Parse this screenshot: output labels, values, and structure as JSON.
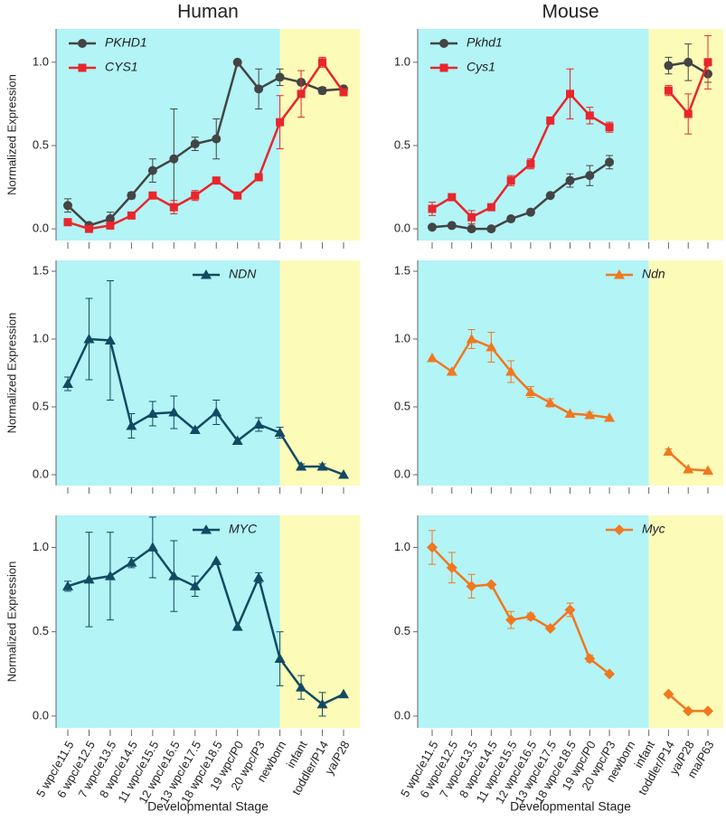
{
  "chart_data": [
    {
      "type": "line",
      "title": "Human",
      "ylabel": "Normalized Expression",
      "legend": "upper left",
      "ylim": [
        -0.07,
        1.2
      ],
      "yticks": [
        {
          "value": 0,
          "label": "0.0"
        },
        {
          "value": 0.5,
          "label": "0.5"
        },
        {
          "value": 1.0,
          "label": "1.0"
        }
      ],
      "series": [
        {
          "name": "PKHD1",
          "color": "#444444",
          "marker": "circle",
          "values": [
            0.14,
            0.02,
            0.06,
            0.2,
            0.35,
            0.42,
            0.51,
            0.54,
            1.0,
            0.84,
            0.91,
            0.88,
            0.83,
            0.84
          ],
          "errors": [
            0.04,
            0.01,
            0.04,
            0.02,
            0.07,
            0.3,
            0.04,
            0.12,
            null,
            0.12,
            0.05,
            null,
            0.02,
            null
          ]
        },
        {
          "name": "CYS1",
          "color": "#e8262c",
          "marker": "square",
          "values": [
            0.04,
            0.0,
            0.02,
            0.08,
            0.2,
            0.13,
            0.2,
            0.29,
            0.2,
            0.31,
            0.64,
            0.81,
            1.0,
            0.82
          ],
          "errors": [
            null,
            0.01,
            0.02,
            null,
            0.02,
            0.04,
            0.03,
            null,
            null,
            null,
            0.16,
            0.14,
            0.03,
            0.02
          ]
        }
      ]
    },
    {
      "type": "line",
      "title": "Mouse",
      "legend": "upper left",
      "ylim": [
        -0.07,
        1.2
      ],
      "yticks": [
        {
          "value": 0,
          "label": "0.0"
        },
        {
          "value": 0.5,
          "label": "0.5"
        },
        {
          "value": 1.0,
          "label": "1.0"
        }
      ],
      "series": [
        {
          "name": "Pkhd1",
          "color": "#444444",
          "marker": "circle",
          "values": [
            0.01,
            0.02,
            0.0,
            0.0,
            0.06,
            0.1,
            0.2,
            0.29,
            0.32,
            0.4,
            null,
            null,
            0.98,
            1.0,
            0.93
          ],
          "errors": [
            null,
            null,
            null,
            null,
            null,
            null,
            null,
            0.04,
            0.06,
            0.04,
            null,
            null,
            0.05,
            0.11,
            0.05
          ]
        },
        {
          "name": "Cys1",
          "color": "#e8262c",
          "marker": "square",
          "values": [
            0.12,
            0.19,
            0.07,
            0.13,
            0.29,
            0.39,
            0.65,
            0.81,
            0.68,
            0.61,
            null,
            null,
            0.83,
            0.69,
            1.0
          ],
          "errors": [
            0.04,
            null,
            0.04,
            null,
            0.03,
            0.03,
            0.02,
            0.15,
            0.05,
            0.03,
            null,
            null,
            0.03,
            0.12,
            0.16
          ]
        }
      ]
    },
    {
      "type": "line",
      "ylabel": "Normalized Expression",
      "legend": "upper right",
      "ylim": [
        -0.08,
        1.58
      ],
      "yticks": [
        {
          "value": 0,
          "label": "0.0"
        },
        {
          "value": 0.5,
          "label": "0.5"
        },
        {
          "value": 1.0,
          "label": "1.0"
        },
        {
          "value": 1.5,
          "label": "1.5"
        }
      ],
      "series": [
        {
          "name": "NDN",
          "color": "#124a63",
          "marker": "triangle",
          "values": [
            0.67,
            1.0,
            0.99,
            0.36,
            0.45,
            0.46,
            0.33,
            0.46,
            0.25,
            0.37,
            0.31,
            0.06,
            0.06,
            0.0
          ],
          "errors": [
            0.05,
            0.3,
            0.44,
            0.09,
            0.09,
            0.12,
            null,
            0.09,
            null,
            0.05,
            0.04,
            0.02,
            0.02,
            null
          ]
        }
      ]
    },
    {
      "type": "line",
      "legend": "upper right",
      "ylim": [
        -0.08,
        1.58
      ],
      "yticks": [
        {
          "value": 0,
          "label": "0.0"
        },
        {
          "value": 0.5,
          "label": "0.5"
        },
        {
          "value": 1.0,
          "label": "1.0"
        },
        {
          "value": 1.5,
          "label": "1.5"
        }
      ],
      "series": [
        {
          "name": "Ndn",
          "color": "#f07820",
          "marker": "triangle",
          "values": [
            0.86,
            0.76,
            1.0,
            0.94,
            0.76,
            0.61,
            0.53,
            0.45,
            0.44,
            0.42,
            null,
            null,
            0.17,
            0.04,
            0.03
          ],
          "errors": [
            null,
            null,
            0.07,
            0.11,
            0.08,
            0.04,
            0.03,
            null,
            0.02,
            null,
            null,
            null,
            0.02,
            null,
            null
          ]
        }
      ]
    },
    {
      "type": "line",
      "ylabel": "Normalized Expression",
      "xlabel": "Developmental Stage",
      "legend": "upper right",
      "categories": [
        "5 wpc/e11.5",
        "6 wpc/e12.5",
        "7 wpc/e13.5",
        "8 wpc/e14.5",
        "11 wpc/e15.5",
        "12 wpc/e16.5",
        "13 wpc/e17.5",
        "18 wpc/e18.5",
        "19 wpc/P0",
        "20 wpc/P3",
        "newborn",
        "infant",
        "toddler/P14",
        "ya/P28"
      ],
      "ylim": [
        -0.07,
        1.19
      ],
      "yticks": [
        {
          "value": 0,
          "label": "0.0"
        },
        {
          "value": 0.5,
          "label": "0.5"
        },
        {
          "value": 1.0,
          "label": "1.0"
        }
      ],
      "series": [
        {
          "name": "MYC",
          "color": "#124a63",
          "marker": "triangle",
          "values": [
            0.77,
            0.81,
            0.83,
            0.91,
            1.0,
            0.83,
            0.77,
            0.92,
            0.53,
            0.82,
            0.34,
            0.17,
            0.07,
            0.13
          ],
          "errors": [
            0.03,
            0.28,
            0.26,
            0.03,
            0.18,
            0.21,
            0.06,
            null,
            null,
            0.03,
            0.16,
            0.07,
            0.07,
            null
          ]
        }
      ]
    },
    {
      "type": "line",
      "xlabel": "Developmental Stage",
      "legend": "upper right",
      "categories": [
        "5 wpc/e11.5",
        "6 wpc/e12.5",
        "7 wpc/e13.5",
        "8 wpc/e14.5",
        "11 wpc/e15.5",
        "12 wpc/e16.5",
        "13 wpc/e17.5",
        "18 wpc/e18.5",
        "19 wpc/P0",
        "20 wpc/P3",
        "newborn",
        "infant",
        "toddler/P14",
        "ya/P28",
        "ma/P63"
      ],
      "ylim": [
        -0.07,
        1.19
      ],
      "yticks": [
        {
          "value": 0,
          "label": "0.0"
        },
        {
          "value": 0.5,
          "label": "0.5"
        },
        {
          "value": 1.0,
          "label": "1.0"
        }
      ],
      "series": [
        {
          "name": "Myc",
          "color": "#f07820",
          "marker": "diamond",
          "values": [
            1.0,
            0.88,
            0.77,
            0.78,
            0.57,
            0.59,
            0.52,
            0.63,
            0.34,
            0.25,
            null,
            null,
            0.13,
            0.03,
            0.03
          ],
          "errors": [
            0.1,
            0.09,
            0.07,
            null,
            0.05,
            0.02,
            null,
            0.04,
            0.02,
            null,
            null,
            null,
            null,
            null,
            null
          ]
        }
      ]
    }
  ]
}
